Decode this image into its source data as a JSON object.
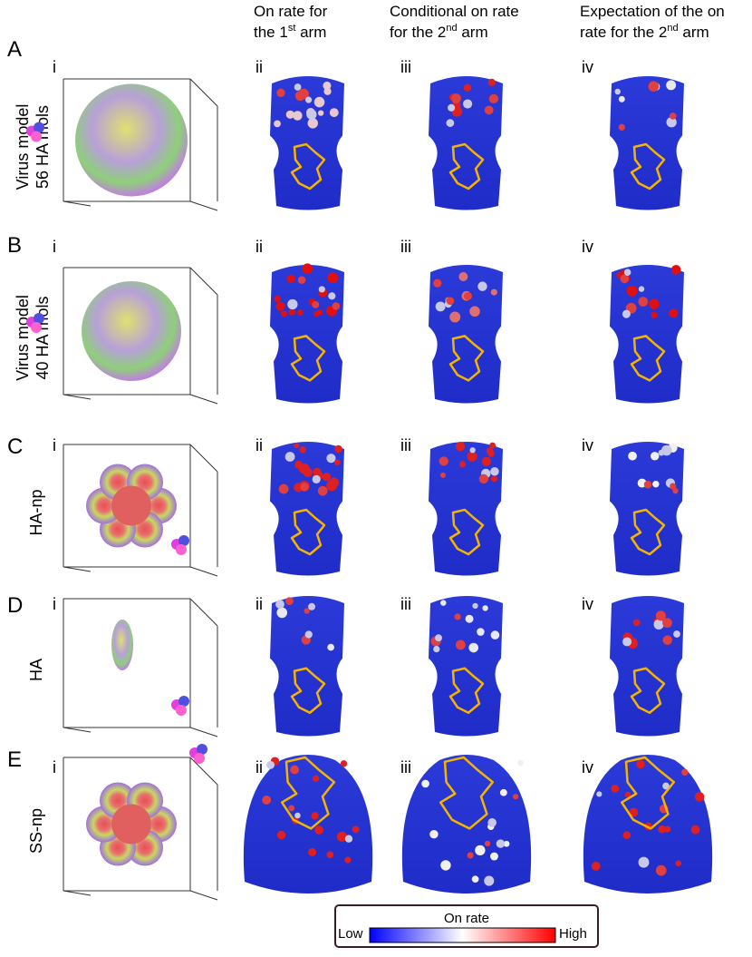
{
  "columns": [
    {
      "line1": "On rate for",
      "line2_pre": "the 1",
      "line2_sup": "st",
      "line2_post": " arm"
    },
    {
      "line1": "Conditional on rate",
      "line2_pre": "for the 2",
      "line2_sup": "nd",
      "line2_post": " arm"
    },
    {
      "line1": "Expectation of the on",
      "line2_pre": "rate for the 2",
      "line2_sup": "nd",
      "line2_post": " arm"
    }
  ],
  "rows": [
    {
      "letter": "A",
      "label": [
        "Virus model",
        "56 HA mols"
      ],
      "panels": [
        "i",
        "ii",
        "iii",
        "iv"
      ]
    },
    {
      "letter": "B",
      "label": [
        "Virus model",
        "40 HA mols"
      ],
      "panels": [
        "i",
        "ii",
        "iii",
        "iv"
      ]
    },
    {
      "letter": "C",
      "label": [
        "HA-np"
      ],
      "panels": [
        "i",
        "ii",
        "iii",
        "iv"
      ]
    },
    {
      "letter": "D",
      "label": [
        "HA"
      ],
      "panels": [
        "i",
        "ii",
        "iii",
        "iv"
      ]
    },
    {
      "letter": "E",
      "label": [
        "SS-np"
      ],
      "panels": [
        "i",
        "ii",
        "iii",
        "iv"
      ]
    }
  ],
  "colorbar": {
    "title": "On rate",
    "low": "Low",
    "high": "High"
  }
}
